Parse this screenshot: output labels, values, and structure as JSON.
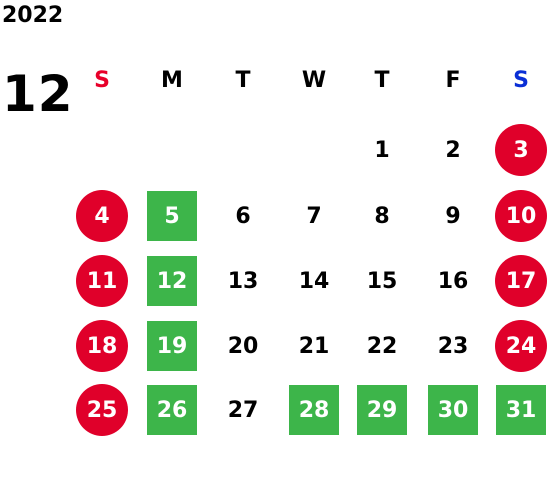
{
  "year": "2022",
  "month": "12",
  "colors": {
    "sunday_header": "#e8002a",
    "saturday_header": "#0a2fd6",
    "weekend_circle": "#e0002a",
    "holiday_square": "#3db54a",
    "text": "#000000",
    "text_on_mark": "#ffffff"
  },
  "weekdays": [
    "S",
    "M",
    "T",
    "W",
    "T",
    "F",
    "S"
  ],
  "weeks": [
    [
      {
        "day": "",
        "style": "none"
      },
      {
        "day": "",
        "style": "none"
      },
      {
        "day": "",
        "style": "none"
      },
      {
        "day": "",
        "style": "none"
      },
      {
        "day": "1",
        "style": "plain"
      },
      {
        "day": "2",
        "style": "plain"
      },
      {
        "day": "3",
        "style": "circle"
      }
    ],
    [
      {
        "day": "4",
        "style": "circle"
      },
      {
        "day": "5",
        "style": "square"
      },
      {
        "day": "6",
        "style": "plain"
      },
      {
        "day": "7",
        "style": "plain"
      },
      {
        "day": "8",
        "style": "plain"
      },
      {
        "day": "9",
        "style": "plain"
      },
      {
        "day": "10",
        "style": "circle"
      }
    ],
    [
      {
        "day": "11",
        "style": "circle"
      },
      {
        "day": "12",
        "style": "square"
      },
      {
        "day": "13",
        "style": "plain"
      },
      {
        "day": "14",
        "style": "plain"
      },
      {
        "day": "15",
        "style": "plain"
      },
      {
        "day": "16",
        "style": "plain"
      },
      {
        "day": "17",
        "style": "circle"
      }
    ],
    [
      {
        "day": "18",
        "style": "circle"
      },
      {
        "day": "19",
        "style": "square"
      },
      {
        "day": "20",
        "style": "plain"
      },
      {
        "day": "21",
        "style": "plain"
      },
      {
        "day": "22",
        "style": "plain"
      },
      {
        "day": "23",
        "style": "plain"
      },
      {
        "day": "24",
        "style": "circle"
      }
    ],
    [
      {
        "day": "25",
        "style": "circle"
      },
      {
        "day": "26",
        "style": "square"
      },
      {
        "day": "27",
        "style": "plain"
      },
      {
        "day": "28",
        "style": "square"
      },
      {
        "day": "29",
        "style": "square"
      },
      {
        "day": "30",
        "style": "square"
      },
      {
        "day": "31",
        "style": "square"
      }
    ]
  ]
}
